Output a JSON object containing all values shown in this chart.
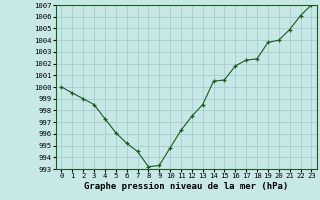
{
  "x": [
    0,
    1,
    2,
    3,
    4,
    5,
    6,
    7,
    8,
    9,
    10,
    11,
    12,
    13,
    14,
    15,
    16,
    17,
    18,
    19,
    20,
    21,
    22,
    23
  ],
  "y": [
    1000.0,
    999.5,
    999.0,
    998.5,
    997.3,
    996.1,
    995.2,
    994.5,
    993.2,
    993.3,
    994.8,
    996.3,
    997.5,
    998.5,
    1000.5,
    1000.6,
    1001.8,
    1002.3,
    1002.4,
    1003.8,
    1004.0,
    1004.9,
    1006.1,
    1007.0
  ],
  "ylim": [
    993,
    1007
  ],
  "yticks": [
    993,
    994,
    995,
    996,
    997,
    998,
    999,
    1000,
    1001,
    1002,
    1003,
    1004,
    1005,
    1006,
    1007
  ],
  "xticks": [
    0,
    1,
    2,
    3,
    4,
    5,
    6,
    7,
    8,
    9,
    10,
    11,
    12,
    13,
    14,
    15,
    16,
    17,
    18,
    19,
    20,
    21,
    22,
    23
  ],
  "line_color": "#1a5c1a",
  "marker": "+",
  "bg_color": "#c8e8e8",
  "grid_color": "#a0c8c8",
  "xlabel": "Graphe pression niveau de la mer (hPa)",
  "xlabel_fontsize": 6.5,
  "tick_fontsize": 5.2,
  "fig_bg": "#c8e8e8"
}
